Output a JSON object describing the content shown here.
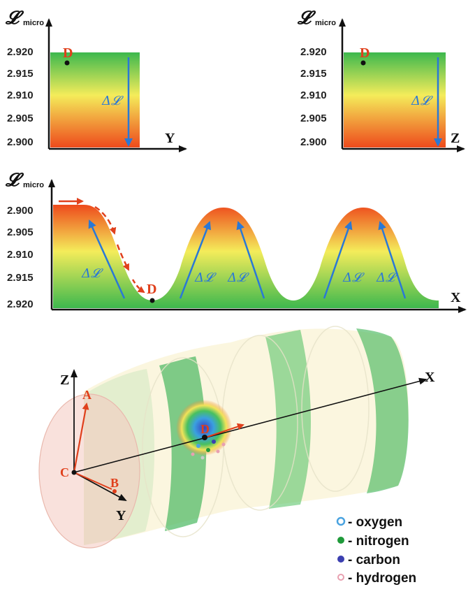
{
  "panels": {
    "y_panel": {
      "ylabel": "𝓛",
      "ylabel_sub": "micro",
      "ticks": [
        "2.920",
        "2.915",
        "2.910",
        "2.905",
        "2.900"
      ],
      "xlabel": "Y",
      "point_label": "D",
      "delta_label": "Δ𝓛"
    },
    "z_panel": {
      "ylabel": "𝓛",
      "ylabel_sub": "micro",
      "ticks": [
        "2.920",
        "2.915",
        "2.910",
        "2.905",
        "2.900"
      ],
      "xlabel": "Z",
      "point_label": "D",
      "delta_label": "Δ𝓛"
    },
    "x_panel": {
      "ylabel": "𝓛",
      "ylabel_sub": "micro",
      "ticks": [
        "2.900",
        "2.905",
        "2.910",
        "2.915",
        "2.920"
      ],
      "xlabel": "X",
      "point_label": "D",
      "delta_labels": [
        "Δ𝓛",
        "Δ𝓛",
        "Δ𝓛",
        "Δ𝓛",
        "Δ𝓛"
      ]
    }
  },
  "channel": {
    "axes": {
      "x": "X",
      "y": "Y",
      "z": "Z"
    },
    "points": {
      "a": "A",
      "b": "B",
      "c": "C",
      "d": "D"
    }
  },
  "legend": [
    {
      "label": "- oxygen",
      "color": "#4aa3e0"
    },
    {
      "label": "- nitrogen",
      "color": "#1f9a3a"
    },
    {
      "label": "- carbon",
      "color": "#3b3fb0"
    },
    {
      "label": "- hydrogen",
      "color": "#e8a0b0"
    }
  ],
  "colors": {
    "high": "#ee4a1c",
    "mid": "#f5e850",
    "low": "#38b84a",
    "arrow_blue": "#2a78d6",
    "arrow_red": "#e0401c"
  }
}
